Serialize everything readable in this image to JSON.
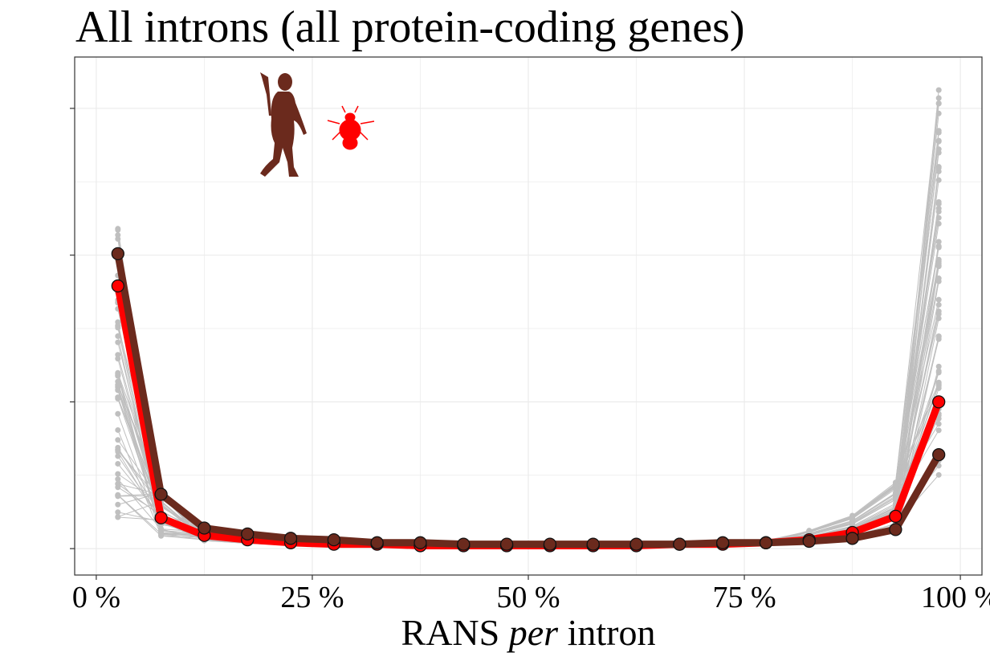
{
  "chart_data": {
    "type": "line",
    "title": "All introns (all protein-coding genes)",
    "xlabel_parts": [
      "RANS ",
      "per",
      " intron"
    ],
    "x": [
      2.5,
      7.5,
      12.5,
      17.5,
      22.5,
      27.5,
      32.5,
      37.5,
      42.5,
      47.5,
      52.5,
      57.5,
      62.5,
      67.5,
      72.5,
      77.5,
      82.5,
      87.5,
      92.5,
      97.5
    ],
    "x_ticks": [
      0,
      25,
      50,
      75,
      100
    ],
    "x_tick_labels": [
      "0 %",
      "25 %",
      "50 %",
      "75 %",
      "100 %"
    ],
    "xlim": [
      -2.5,
      102.5
    ],
    "ylim": [
      -0.018,
      0.335
    ],
    "y_ticks": [
      0,
      0.1,
      0.2,
      0.3
    ],
    "grid": true,
    "series": [
      {
        "color": "#ff0000",
        "values": [
          0.179,
          0.021,
          0.009,
          0.006,
          0.004,
          0.003,
          0.003,
          0.002,
          0.002,
          0.002,
          0.002,
          0.002,
          0.002,
          0.003,
          0.003,
          0.004,
          0.006,
          0.011,
          0.022,
          0.1
        ]
      },
      {
        "color": "#6b2a1d",
        "values": [
          0.201,
          0.037,
          0.014,
          0.01,
          0.007,
          0.006,
          0.004,
          0.004,
          0.003,
          0.003,
          0.003,
          0.003,
          0.003,
          0.003,
          0.004,
          0.004,
          0.005,
          0.007,
          0.013,
          0.064
        ]
      }
    ],
    "background_lines": {
      "color": "#bfbfbf",
      "count": 60,
      "first_min": 0.02,
      "first_max": 0.22,
      "second_min": 0.008,
      "second_max": 0.04,
      "last_min": 0.05,
      "last_max": 0.315
    },
    "icons": [
      "human-silhouette-icon",
      "fruit-fly-icon"
    ],
    "icon_colors": {
      "human": "#6b2a1d",
      "fly": "#ff0000"
    }
  }
}
